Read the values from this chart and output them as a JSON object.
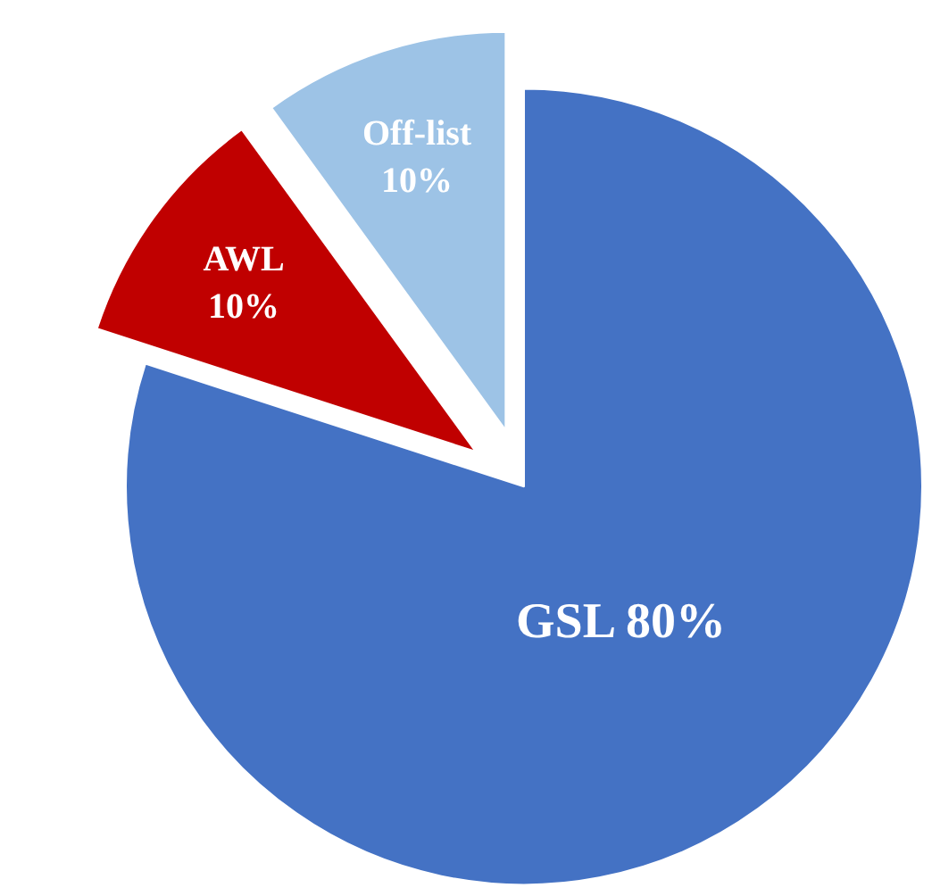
{
  "chart_data": {
    "type": "pie",
    "categories": [
      "GSL",
      "AWL",
      "Off-list"
    ],
    "values": [
      80,
      10,
      10
    ],
    "colors": [
      "#4472c4",
      "#c00000",
      "#9dc3e6"
    ],
    "value_labels": [
      "80%",
      "10%",
      "10%"
    ]
  }
}
